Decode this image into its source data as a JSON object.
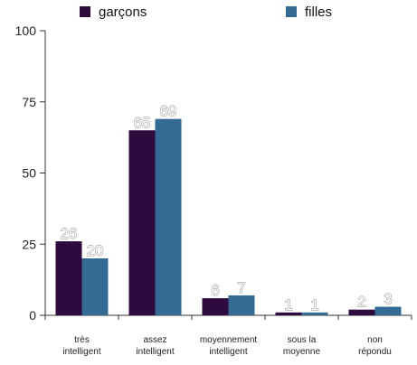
{
  "chart_data": {
    "type": "bar",
    "categories": [
      [
        "très",
        "intelligent"
      ],
      [
        "assez",
        "intelligent"
      ],
      [
        "moyennement",
        "intelligent"
      ],
      [
        "sous la",
        "moyenne"
      ],
      [
        "non",
        "répondu"
      ]
    ],
    "series": [
      {
        "name": "garçons",
        "color": "#2e0a3e",
        "values": [
          26,
          65,
          6,
          1,
          2
        ]
      },
      {
        "name": "filles",
        "color": "#336b94",
        "values": [
          20,
          69,
          7,
          1,
          3
        ]
      }
    ],
    "yticks": [
      "0",
      "25",
      "50",
      "75",
      "100"
    ],
    "ylim": [
      0,
      100
    ],
    "grid": false,
    "legend": "top"
  }
}
